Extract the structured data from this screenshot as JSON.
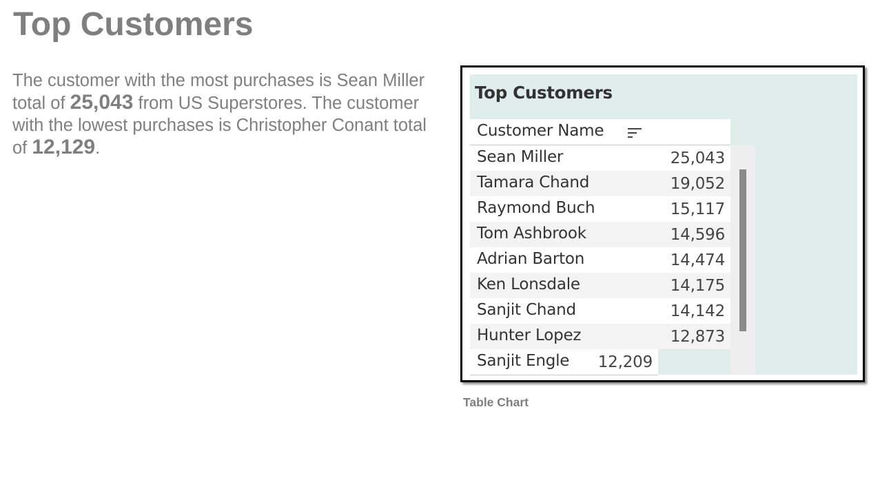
{
  "slide": {
    "title": "Top Customers",
    "description": {
      "part1": "The customer with the most purchases is Sean Miller total of ",
      "top_value": "25,043",
      "part2": " from US Superstores.  The customer with the lowest purchases is Christopher Conant total of ",
      "low_value": "12,129",
      "part3": "."
    },
    "caption": "Table Chart"
  },
  "dashboard": {
    "title": "Top Customers",
    "column_header": "Customer Name",
    "sort_icon": "sort-descending-icon",
    "background_color": "#e0eeeb",
    "rows": [
      {
        "name": "Sean Miller",
        "value": "25,043"
      },
      {
        "name": "Tamara Chand",
        "value": "19,052"
      },
      {
        "name": "Raymond Buch",
        "value": "15,117"
      },
      {
        "name": "Tom Ashbrook",
        "value": "14,596"
      },
      {
        "name": "Adrian Barton",
        "value": "14,474"
      },
      {
        "name": "Ken Lonsdale",
        "value": "14,175"
      },
      {
        "name": "Sanjit Chand",
        "value": "14,142"
      },
      {
        "name": "Hunter Lopez",
        "value": "12,873"
      },
      {
        "name": "Sanjit Engle",
        "value": "12,209"
      }
    ]
  }
}
